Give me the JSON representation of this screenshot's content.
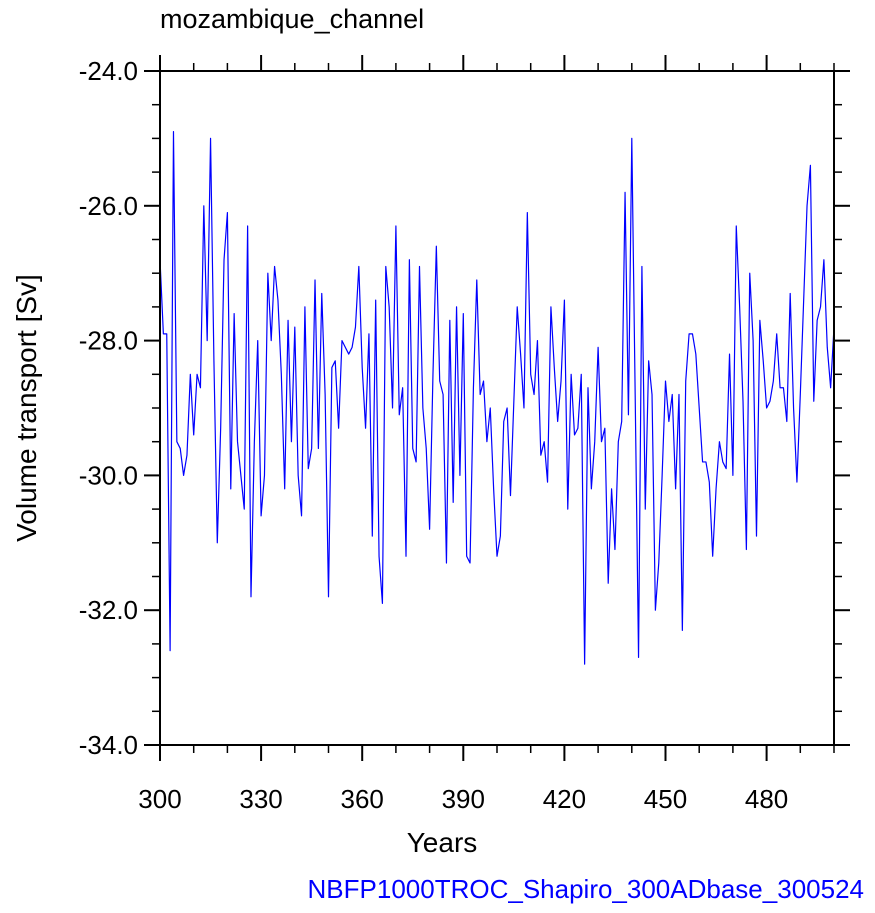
{
  "chart_data": {
    "type": "line",
    "title": "mozambique_channel",
    "xlabel": "Years",
    "ylabel": "Volume transport [Sv]",
    "xlim": [
      300,
      500
    ],
    "ylim": [
      -34,
      -24
    ],
    "x_ticks": [
      300,
      330,
      360,
      390,
      420,
      450,
      480
    ],
    "y_ticks": [
      -34,
      -32,
      -30,
      -28,
      -26,
      -24
    ],
    "y_tick_labels": [
      "-34.0",
      "-32.0",
      "-30.0",
      "-28.0",
      "-26.0",
      "-24.0"
    ],
    "footer": "NBFP1000TROC_Shapiro_300ADbase_300524",
    "grid": false,
    "line_color": "#0000ff",
    "footer_color": "#0000ff",
    "series": [
      {
        "x_start": 300,
        "x_step": 1,
        "values": [
          -26.8,
          -27.9,
          -27.9,
          -32.6,
          -24.9,
          -29.5,
          -29.6,
          -30.0,
          -29.7,
          -28.5,
          -29.4,
          -28.5,
          -28.7,
          -26.0,
          -28.0,
          -25.0,
          -28.3,
          -31.0,
          -29.3,
          -26.8,
          -26.1,
          -30.2,
          -27.6,
          -29.5,
          -30.0,
          -30.5,
          -26.3,
          -31.8,
          -29.5,
          -28.0,
          -30.6,
          -30.0,
          -27.0,
          -28.0,
          -26.9,
          -27.4,
          -28.5,
          -30.2,
          -27.7,
          -29.5,
          -27.8,
          -30.0,
          -30.6,
          -27.5,
          -29.9,
          -29.6,
          -27.1,
          -29.6,
          -27.3,
          -28.8,
          -31.8,
          -28.4,
          -28.3,
          -29.3,
          -28.0,
          -28.1,
          -28.2,
          -28.1,
          -27.8,
          -26.9,
          -28.4,
          -29.3,
          -27.9,
          -30.9,
          -27.4,
          -31.2,
          -31.9,
          -26.9,
          -27.5,
          -29.0,
          -26.3,
          -29.1,
          -28.7,
          -31.2,
          -26.8,
          -29.6,
          -29.8,
          -26.9,
          -29.0,
          -29.6,
          -30.8,
          -28.5,
          -26.6,
          -28.6,
          -28.8,
          -31.3,
          -27.7,
          -30.4,
          -27.5,
          -30.0,
          -27.6,
          -31.2,
          -31.3,
          -28.7,
          -27.1,
          -28.8,
          -28.6,
          -29.5,
          -29.0,
          -30.2,
          -31.2,
          -30.9,
          -29.2,
          -29.0,
          -30.3,
          -28.9,
          -27.5,
          -28.2,
          -29.0,
          -26.1,
          -28.5,
          -28.8,
          -28.0,
          -29.7,
          -29.5,
          -30.1,
          -27.5,
          -28.4,
          -29.2,
          -28.6,
          -27.4,
          -30.5,
          -28.5,
          -29.4,
          -29.3,
          -28.5,
          -32.8,
          -28.7,
          -30.2,
          -29.5,
          -28.1,
          -29.5,
          -29.3,
          -31.6,
          -30.2,
          -31.1,
          -29.5,
          -29.2,
          -25.8,
          -29.1,
          -25.0,
          -28.8,
          -32.7,
          -26.9,
          -30.5,
          -28.3,
          -28.8,
          -32.0,
          -31.3,
          -30.0,
          -28.6,
          -29.2,
          -28.8,
          -30.2,
          -28.8,
          -32.3,
          -28.6,
          -27.9,
          -27.9,
          -28.2,
          -29.0,
          -29.8,
          -29.8,
          -30.1,
          -31.2,
          -30.2,
          -29.5,
          -29.8,
          -29.9,
          -28.2,
          -30.0,
          -26.3,
          -27.5,
          -28.9,
          -31.1,
          -27.0,
          -28.0,
          -30.9,
          -27.7,
          -28.3,
          -29.0,
          -28.9,
          -28.6,
          -27.9,
          -28.7,
          -28.7,
          -29.2,
          -27.3,
          -29.0,
          -30.1,
          -28.8,
          -27.4,
          -26.0,
          -25.4,
          -28.9,
          -27.7,
          -27.5,
          -26.8,
          -28.1,
          -28.7,
          -27.8
        ]
      }
    ]
  }
}
